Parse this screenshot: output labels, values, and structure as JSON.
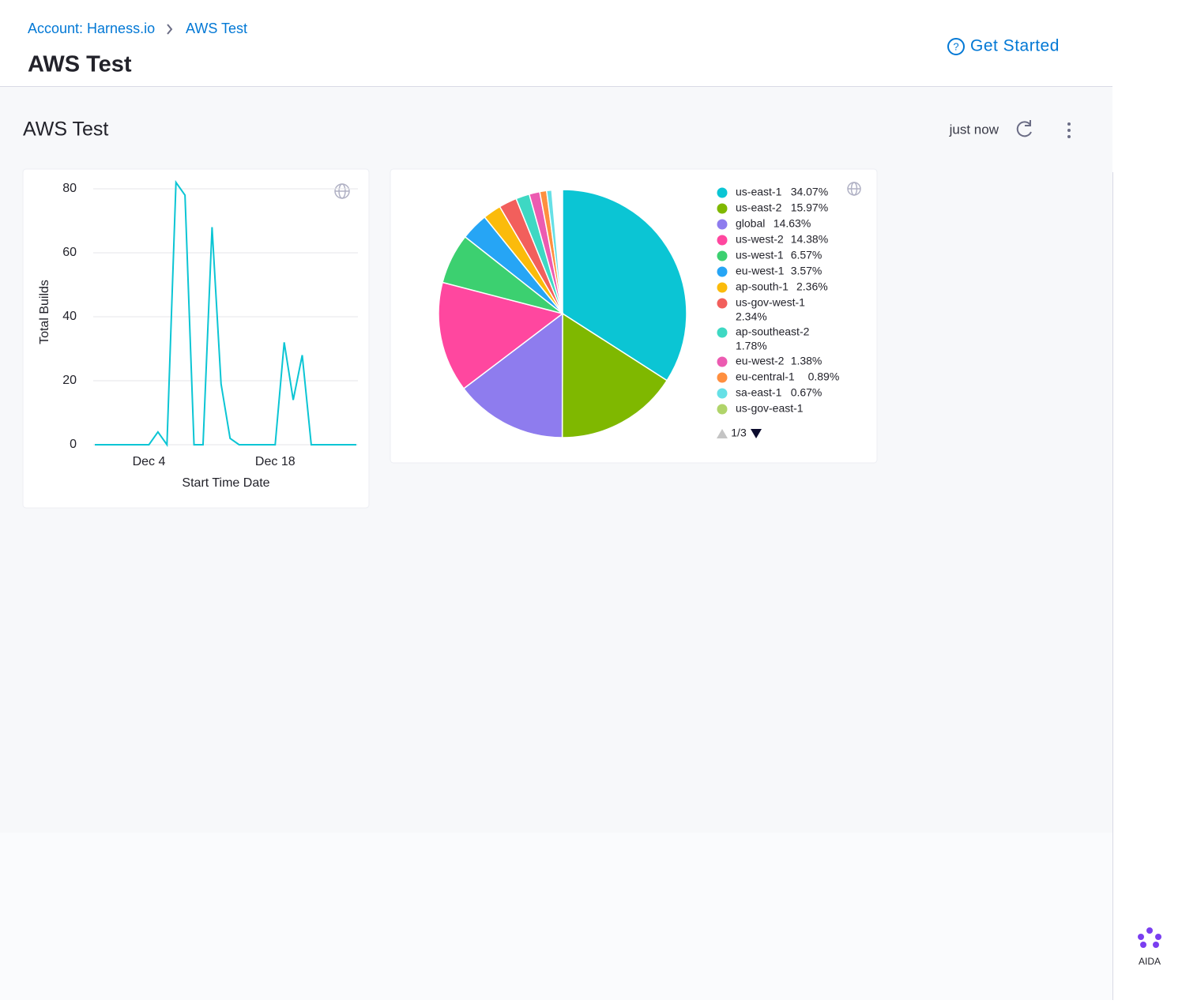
{
  "header": {
    "breadcrumbs": [
      "Account: Harness.io",
      "AWS Test"
    ],
    "title": "AWS Test",
    "get_started": "Get Started"
  },
  "dashboard": {
    "title": "AWS Test",
    "updated": "just now"
  },
  "aida": "AIDA",
  "chart_data": [
    {
      "type": "line",
      "x_label": "Start Time Date",
      "y_label": "Total Builds",
      "categories": [
        null,
        null,
        null,
        null,
        null,
        null,
        "Dec 4",
        null,
        null,
        null,
        null,
        null,
        null,
        null,
        null,
        null,
        null,
        null,
        null,
        null,
        "Dec 18",
        null,
        null,
        null,
        null,
        null,
        null,
        null,
        null,
        null
      ],
      "series": [
        {
          "name": "Total Builds",
          "color": "#0bc5d4",
          "values": [
            0,
            0,
            0,
            0,
            0,
            0,
            0,
            4,
            0,
            82,
            78,
            0,
            0,
            68,
            19,
            2,
            0,
            0,
            0,
            0,
            0,
            32,
            14,
            28,
            0,
            0,
            0,
            0,
            0,
            0
          ]
        }
      ],
      "ylim": [
        0,
        82
      ],
      "yticks": [
        0,
        20,
        40,
        60,
        80
      ],
      "grid": true
    },
    {
      "type": "pie",
      "categories": [
        "us-east-1",
        "us-east-2",
        "global",
        "us-west-2",
        "us-west-1",
        "eu-west-1",
        "ap-south-1",
        "us-gov-west-1",
        "ap-southeast-2",
        "eu-west-2",
        "eu-central-1",
        "sa-east-1",
        "us-gov-east-1"
      ],
      "values": [
        34.07,
        15.97,
        14.63,
        14.38,
        6.57,
        3.57,
        2.36,
        2.34,
        1.78,
        1.38,
        0.89,
        0.67,
        null
      ],
      "value_labels": [
        "34.07%",
        "15.97%",
        "14.63%",
        "14.38%",
        "6.57%",
        "3.57%",
        "2.36%",
        "2.34%",
        "1.78%",
        "1.38%",
        "0.89%",
        "0.67%",
        null
      ],
      "colors": [
        "#0bc5d4",
        "#7fb800",
        "#8e7cee",
        "#ff479f",
        "#3cd070",
        "#26a5f5",
        "#fbbb0b",
        "#f25f5c",
        "#3ed8c3",
        "#ec5bb1",
        "#ff8f3f",
        "#66e0e6",
        "#b0d46a"
      ],
      "legend_page": "1/3"
    }
  ]
}
